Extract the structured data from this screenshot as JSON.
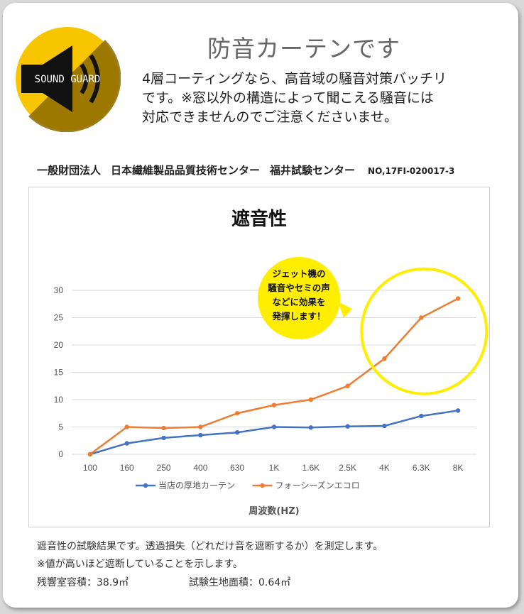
{
  "logo": {
    "text": "SOUND GUARD"
  },
  "header": {
    "title": "防音カーテンです",
    "description_lines": [
      "4層コーティングなら、高音域の騒音対策バッチリ",
      "です。※窓以外の構造によって聞こえる騒音には",
      "対応できませんのでご注意くださいませ。"
    ]
  },
  "org": {
    "name": "一般財団法人",
    "center": "日本繊維製品品質技術センター",
    "lab": "福井試験センター",
    "cert_no": "NO,17FI-020017-3"
  },
  "chart_data": {
    "type": "line",
    "title": "遮音性",
    "xlabel": "周波数(HZ)",
    "ylabel": "",
    "categories": [
      "100",
      "160",
      "250",
      "400",
      "630",
      "1K",
      "1.6K",
      "2.5K",
      "4K",
      "6.3K",
      "8K"
    ],
    "ylim": [
      0,
      30
    ],
    "yticks": [
      0,
      5,
      10,
      15,
      20,
      25,
      30
    ],
    "grid": true,
    "legend": "bottom",
    "series": [
      {
        "name": "当店の厚地カーテン",
        "color": "#4472c4",
        "values": [
          0,
          2,
          3,
          3.5,
          4,
          5,
          4.9,
          5.1,
          5.2,
          7,
          8
        ]
      },
      {
        "name": "フォーシーズンエコロ",
        "color": "#ed7d31",
        "values": [
          0,
          5,
          4.8,
          5,
          7.5,
          9,
          10,
          12.5,
          17.5,
          25,
          28.5
        ]
      }
    ],
    "annotation": {
      "lines": [
        "ジェット機の",
        "騒音やセミの声",
        "などに効果を",
        "発揮します！"
      ],
      "fill": "#ffee00",
      "ring_color": "#ffee00"
    }
  },
  "footer": {
    "line1": "遮音性の試験結果です。透過損失（どれだけ音を遮断するか）を測定します。",
    "line2": "※値が高いほど遮断していることを示します。",
    "room_label": "残響室容積：38.9㎥",
    "area_label": "試験生地面積：0.64㎡"
  }
}
